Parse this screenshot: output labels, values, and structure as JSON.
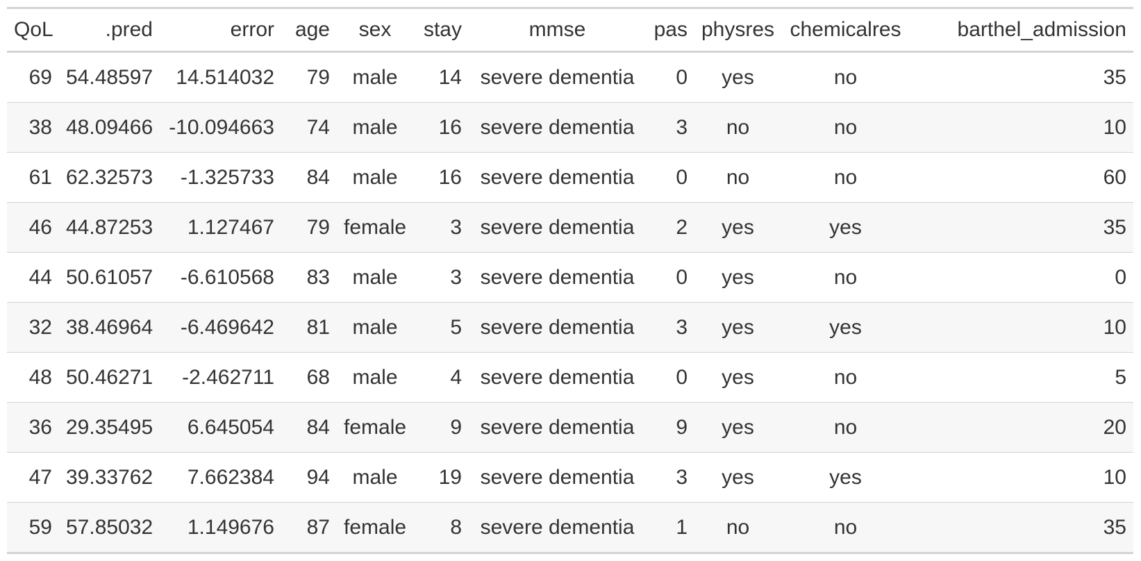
{
  "table": {
    "columns": [
      {
        "key": "qol",
        "label": "QoL"
      },
      {
        "key": "pred",
        "label": ".pred"
      },
      {
        "key": "error",
        "label": "error"
      },
      {
        "key": "age",
        "label": "age"
      },
      {
        "key": "sex",
        "label": "sex"
      },
      {
        "key": "stay",
        "label": "stay"
      },
      {
        "key": "mmse",
        "label": "mmse"
      },
      {
        "key": "pas",
        "label": "pas"
      },
      {
        "key": "physres",
        "label": "physres"
      },
      {
        "key": "chemicalres",
        "label": "chemicalres"
      },
      {
        "key": "barthel",
        "label": "barthel_admission"
      }
    ],
    "rows": [
      [
        "69",
        "54.48597",
        "14.514032",
        "79",
        "male",
        "14",
        "severe dementia",
        "0",
        "yes",
        "no",
        "35"
      ],
      [
        "38",
        "48.09466",
        "-10.094663",
        "74",
        "male",
        "16",
        "severe dementia",
        "3",
        "no",
        "no",
        "10"
      ],
      [
        "61",
        "62.32573",
        "-1.325733",
        "84",
        "male",
        "16",
        "severe dementia",
        "0",
        "no",
        "no",
        "60"
      ],
      [
        "46",
        "44.87253",
        "1.127467",
        "79",
        "female",
        "3",
        "severe dementia",
        "2",
        "yes",
        "yes",
        "35"
      ],
      [
        "44",
        "50.61057",
        "-6.610568",
        "83",
        "male",
        "3",
        "severe dementia",
        "0",
        "yes",
        "no",
        "0"
      ],
      [
        "32",
        "38.46964",
        "-6.469642",
        "81",
        "male",
        "5",
        "severe dementia",
        "3",
        "yes",
        "yes",
        "10"
      ],
      [
        "48",
        "50.46271",
        "-2.462711",
        "68",
        "male",
        "4",
        "severe dementia",
        "0",
        "yes",
        "no",
        "5"
      ],
      [
        "36",
        "29.35495",
        "6.645054",
        "84",
        "female",
        "9",
        "severe dementia",
        "9",
        "yes",
        "no",
        "20"
      ],
      [
        "47",
        "39.33762",
        "7.662384",
        "94",
        "male",
        "19",
        "severe dementia",
        "3",
        "yes",
        "yes",
        "10"
      ],
      [
        "59",
        "57.85032",
        "1.149676",
        "87",
        "female",
        "8",
        "severe dementia",
        "1",
        "no",
        "no",
        "35"
      ]
    ]
  }
}
